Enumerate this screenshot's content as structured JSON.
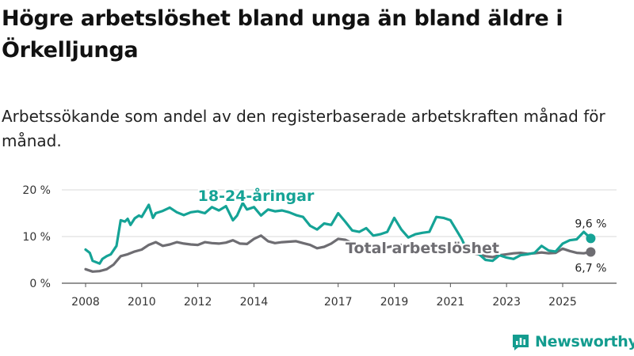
{
  "title": "Högre arbetslöshet bland unga än bland äldre i Örkelljunga",
  "subtitle": "Arbetssökande som andel av den registerbaserade arbetskraften månad för månad.",
  "brand": {
    "name": "Newsworthy",
    "color": "#139c8f",
    "icon": "newsworthy-logo-icon"
  },
  "chart_data": {
    "type": "line",
    "title": "Högre arbetslöshet bland unga än bland äldre i Örkelljunga",
    "xlabel": "",
    "ylabel": "",
    "ylim": [
      0,
      20
    ],
    "xlim": [
      2007.5,
      2026.4
    ],
    "y_ticks": [
      0,
      10,
      20
    ],
    "y_tick_labels": [
      "0 %",
      "10 %",
      "20 %"
    ],
    "x_ticks": [
      2008,
      2010,
      2012,
      2014,
      2017,
      2019,
      2021,
      2023,
      2025
    ],
    "x_tick_labels": [
      "2008",
      "2010",
      "2012",
      "2014",
      "2017",
      "2019",
      "2021",
      "2023",
      "2025"
    ],
    "grid": true,
    "series": [
      {
        "name": "18-24-åringar",
        "color": "#15a396",
        "end_label": "9,6 %",
        "x": [
          2008.0,
          2008.15,
          2008.25,
          2008.5,
          2008.6,
          2008.75,
          2008.9,
          2009.1,
          2009.25,
          2009.4,
          2009.5,
          2009.6,
          2009.75,
          2009.9,
          2010.0,
          2010.25,
          2010.4,
          2010.5,
          2010.75,
          2011.0,
          2011.25,
          2011.5,
          2011.75,
          2012.0,
          2012.25,
          2012.5,
          2012.75,
          2013.0,
          2013.25,
          2013.4,
          2013.6,
          2013.75,
          2014.0,
          2014.25,
          2014.5,
          2014.75,
          2015.0,
          2015.25,
          2015.5,
          2015.75,
          2016.0,
          2016.25,
          2016.5,
          2016.75,
          2017.0,
          2017.25,
          2017.5,
          2017.75,
          2018.0,
          2018.25,
          2018.5,
          2018.75,
          2019.0,
          2019.25,
          2019.5,
          2019.75,
          2020.0,
          2020.25,
          2020.5,
          2020.75,
          2021.0,
          2021.25,
          2021.4,
          2021.5,
          2021.75,
          2022.0,
          2022.25,
          2022.5,
          2022.75,
          2023.0,
          2023.25,
          2023.5,
          2023.75,
          2024.0,
          2024.25,
          2024.5,
          2024.75,
          2025.0,
          2025.25,
          2025.5,
          2025.75,
          2026.0
        ],
        "values": [
          7.2,
          6.5,
          4.8,
          4.2,
          5.2,
          5.8,
          6.2,
          8.0,
          13.5,
          13.2,
          13.8,
          12.5,
          13.9,
          14.5,
          14.2,
          16.8,
          14.0,
          15.0,
          15.5,
          16.2,
          15.2,
          14.6,
          15.2,
          15.4,
          15.0,
          16.3,
          15.6,
          16.5,
          13.5,
          14.5,
          17.2,
          15.8,
          16.3,
          14.5,
          15.8,
          15.4,
          15.6,
          15.2,
          14.6,
          14.2,
          12.3,
          11.5,
          12.8,
          12.5,
          15.0,
          13.2,
          11.3,
          11.0,
          11.8,
          10.2,
          10.5,
          11.0,
          14.0,
          11.5,
          9.8,
          10.5,
          10.8,
          11.0,
          14.2,
          14.0,
          13.5,
          11.0,
          9.5,
          8.2,
          6.8,
          6.3,
          5.0,
          4.8,
          6.0,
          5.5,
          5.2,
          6.0,
          6.2,
          6.5,
          8.0,
          7.0,
          6.8,
          8.5,
          9.2,
          9.4,
          11.0,
          9.6
        ]
      },
      {
        "name": "Total arbetslöshet",
        "color": "#6e6d72",
        "end_label": "6,7 %",
        "x": [
          2008.0,
          2008.25,
          2008.5,
          2008.75,
          2009.0,
          2009.25,
          2009.5,
          2009.75,
          2010.0,
          2010.25,
          2010.5,
          2010.75,
          2011.0,
          2011.25,
          2011.5,
          2011.75,
          2012.0,
          2012.25,
          2012.5,
          2012.75,
          2013.0,
          2013.25,
          2013.5,
          2013.75,
          2014.0,
          2014.25,
          2014.5,
          2014.75,
          2015.0,
          2015.25,
          2015.5,
          2015.75,
          2016.0,
          2016.25,
          2016.5,
          2016.75,
          2017.0,
          2017.25,
          2017.5,
          2017.75,
          2018.0,
          2018.25,
          2018.5,
          2018.75,
          2019.0,
          2019.25,
          2019.5,
          2019.75,
          2020.0,
          2020.25,
          2020.5,
          2020.75,
          2021.0,
          2021.25,
          2021.5,
          2021.75,
          2022.0,
          2022.25,
          2022.5,
          2022.75,
          2023.0,
          2023.25,
          2023.5,
          2023.75,
          2024.0,
          2024.25,
          2024.5,
          2024.75,
          2025.0,
          2025.25,
          2025.5,
          2025.75,
          2026.0
        ],
        "values": [
          3.0,
          2.5,
          2.6,
          3.0,
          4.0,
          5.8,
          6.2,
          6.8,
          7.2,
          8.2,
          8.8,
          8.0,
          8.3,
          8.8,
          8.5,
          8.3,
          8.2,
          8.8,
          8.6,
          8.5,
          8.7,
          9.2,
          8.5,
          8.4,
          9.5,
          10.2,
          9.0,
          8.6,
          8.8,
          8.9,
          9.0,
          8.6,
          8.2,
          7.5,
          7.8,
          8.5,
          9.5,
          9.3,
          8.6,
          8.0,
          7.9,
          7.8,
          7.6,
          7.7,
          8.0,
          8.2,
          7.8,
          7.5,
          7.6,
          8.0,
          8.3,
          8.1,
          8.0,
          7.8,
          6.8,
          6.5,
          6.2,
          5.8,
          5.6,
          6.0,
          6.2,
          6.4,
          6.5,
          6.3,
          6.4,
          6.6,
          6.4,
          6.5,
          7.4,
          6.9,
          6.5,
          6.4,
          6.7
        ]
      }
    ]
  }
}
